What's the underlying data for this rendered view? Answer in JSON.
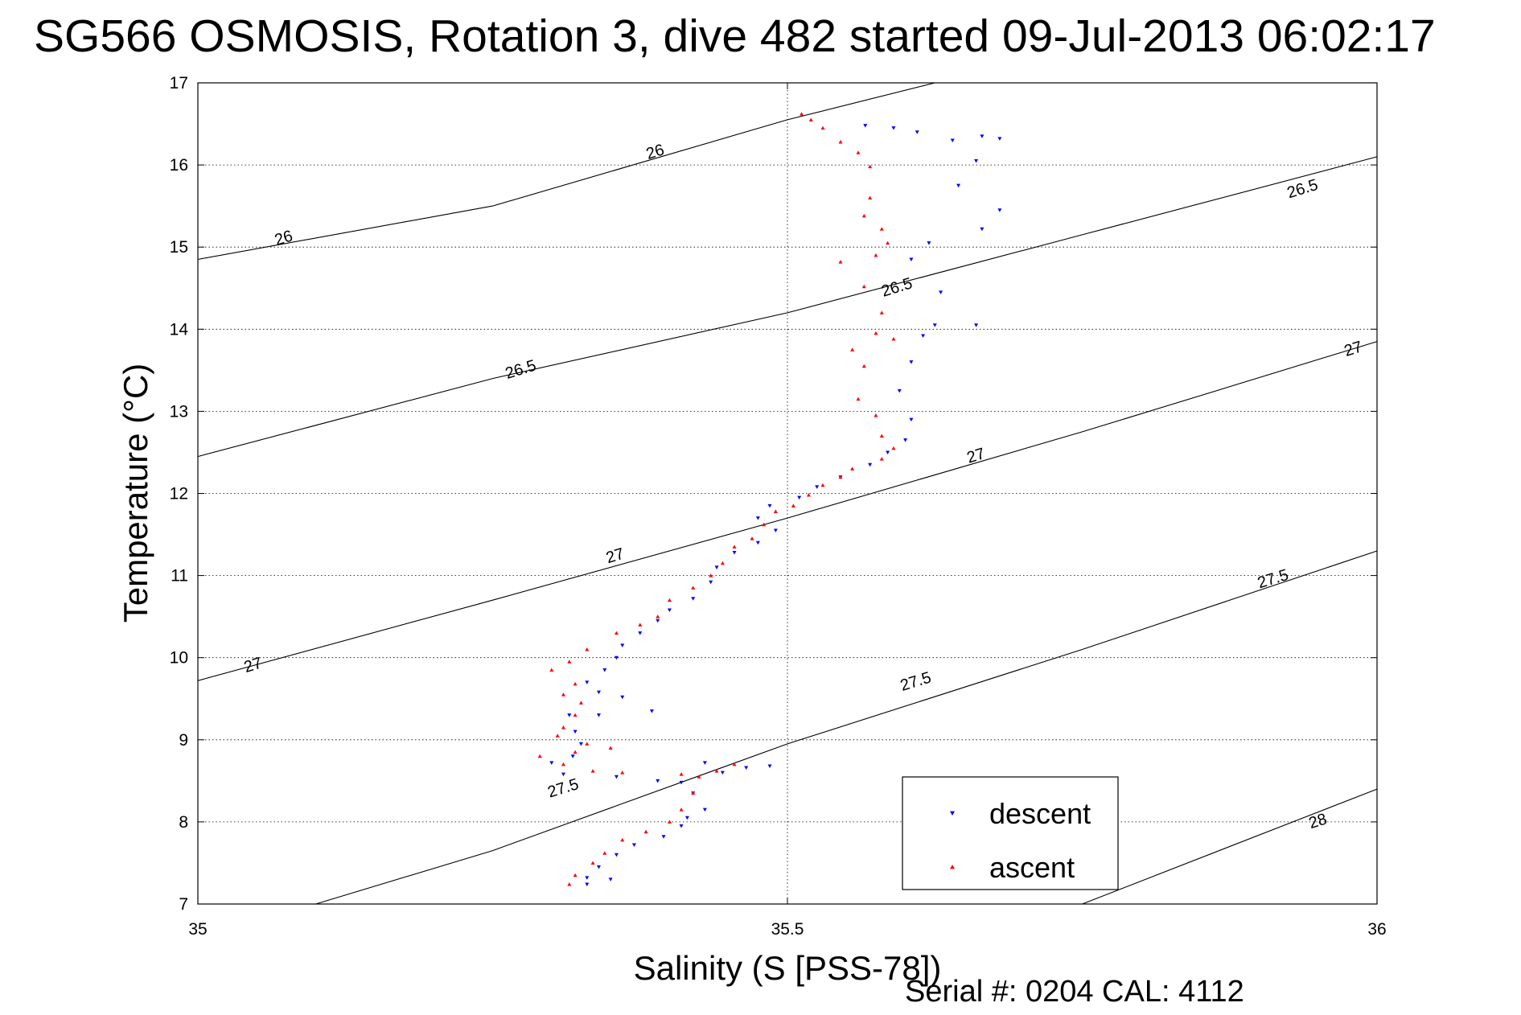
{
  "chart_data": {
    "type": "scatter",
    "title": "SG566 OSMOSIS, Rotation 3, dive 482 started 09-Jul-2013 06:02:17",
    "xlabel": "Salinity (S [PSS-78])",
    "ylabel": "Temperature (°C)",
    "xlim": [
      35,
      36
    ],
    "ylim": [
      7,
      17
    ],
    "x_ticks": [
      "35",
      "35.5",
      "36"
    ],
    "y_ticks": [
      "7",
      "8",
      "9",
      "10",
      "11",
      "12",
      "13",
      "14",
      "15",
      "16",
      "17"
    ],
    "grid": true,
    "legend_position": "bottom-right",
    "footer": "Serial #: 0204  CAL: 4112",
    "density_contours": [
      {
        "label": "26",
        "points": [
          [
            35.0,
            14.85
          ],
          [
            35.25,
            15.5
          ],
          [
            35.5,
            16.55
          ],
          [
            35.625,
            17.0
          ]
        ]
      },
      {
        "label": "26.5",
        "points": [
          [
            35.0,
            12.45
          ],
          [
            35.25,
            13.4
          ],
          [
            35.5,
            14.2
          ],
          [
            35.75,
            15.15
          ],
          [
            36.0,
            16.1
          ]
        ]
      },
      {
        "label": "27",
        "points": [
          [
            35.0,
            9.72
          ],
          [
            35.25,
            10.7
          ],
          [
            35.5,
            11.7
          ],
          [
            35.75,
            12.75
          ],
          [
            36.0,
            13.85
          ]
        ]
      },
      {
        "label": "27.5",
        "points": [
          [
            35.1,
            7.0
          ],
          [
            35.25,
            7.65
          ],
          [
            35.5,
            8.95
          ],
          [
            35.75,
            10.1
          ],
          [
            36.0,
            11.3
          ]
        ]
      },
      {
        "label": "28",
        "points": [
          [
            35.75,
            7.0
          ],
          [
            36.0,
            8.4
          ]
        ]
      }
    ],
    "contour_labels": [
      {
        "text": "26",
        "x": 35.388,
        "y": 16.15
      },
      {
        "text": "26",
        "x": 35.073,
        "y": 15.1
      },
      {
        "text": "26.5",
        "x": 35.937,
        "y": 15.7
      },
      {
        "text": "26.5",
        "x": 35.593,
        "y": 14.5
      },
      {
        "text": "26.5",
        "x": 35.274,
        "y": 13.5
      },
      {
        "text": "27",
        "x": 35.98,
        "y": 13.75
      },
      {
        "text": "27",
        "x": 35.66,
        "y": 12.45
      },
      {
        "text": "27",
        "x": 35.354,
        "y": 11.23
      },
      {
        "text": "27",
        "x": 35.047,
        "y": 9.9
      },
      {
        "text": "27.5",
        "x": 35.912,
        "y": 10.95
      },
      {
        "text": "27.5",
        "x": 35.609,
        "y": 9.7
      },
      {
        "text": "27.5",
        "x": 35.31,
        "y": 8.4
      },
      {
        "text": "28",
        "x": 35.95,
        "y": 8.0
      }
    ],
    "series": [
      {
        "name": "descent",
        "color": "#0000ff",
        "marker": "triangle-down",
        "points": [
          [
            35.566,
            16.48
          ],
          [
            35.59,
            16.45
          ],
          [
            35.61,
            16.4
          ],
          [
            35.64,
            16.3
          ],
          [
            35.665,
            16.35
          ],
          [
            35.68,
            16.32
          ],
          [
            35.66,
            16.05
          ],
          [
            35.645,
            15.75
          ],
          [
            35.68,
            15.45
          ],
          [
            35.665,
            15.22
          ],
          [
            35.62,
            15.05
          ],
          [
            35.605,
            14.85
          ],
          [
            35.63,
            14.45
          ],
          [
            35.625,
            14.05
          ],
          [
            35.66,
            14.05
          ],
          [
            35.615,
            13.92
          ],
          [
            35.605,
            13.6
          ],
          [
            35.595,
            13.25
          ],
          [
            35.605,
            12.9
          ],
          [
            35.6,
            12.65
          ],
          [
            35.585,
            12.5
          ],
          [
            35.57,
            12.35
          ],
          [
            35.545,
            12.2
          ],
          [
            35.525,
            12.08
          ],
          [
            35.51,
            11.95
          ],
          [
            35.485,
            11.85
          ],
          [
            35.475,
            11.7
          ],
          [
            35.49,
            11.55
          ],
          [
            35.475,
            11.4
          ],
          [
            35.455,
            11.28
          ],
          [
            35.44,
            11.1
          ],
          [
            35.435,
            10.92
          ],
          [
            35.42,
            10.72
          ],
          [
            35.4,
            10.58
          ],
          [
            35.39,
            10.45
          ],
          [
            35.375,
            10.3
          ],
          [
            35.36,
            10.15
          ],
          [
            35.355,
            10.0
          ],
          [
            35.345,
            9.85
          ],
          [
            35.33,
            9.7
          ],
          [
            35.34,
            9.58
          ],
          [
            35.36,
            9.52
          ],
          [
            35.385,
            9.35
          ],
          [
            35.34,
            9.3
          ],
          [
            35.315,
            9.3
          ],
          [
            35.32,
            9.1
          ],
          [
            35.325,
            8.95
          ],
          [
            35.318,
            8.8
          ],
          [
            35.3,
            8.72
          ],
          [
            35.31,
            8.58
          ],
          [
            35.355,
            8.55
          ],
          [
            35.39,
            8.5
          ],
          [
            35.41,
            8.48
          ],
          [
            35.445,
            8.6
          ],
          [
            35.465,
            8.66
          ],
          [
            35.485,
            8.68
          ],
          [
            35.43,
            8.72
          ],
          [
            35.42,
            8.35
          ],
          [
            35.43,
            8.15
          ],
          [
            35.415,
            8.05
          ],
          [
            35.41,
            7.95
          ],
          [
            35.395,
            7.82
          ],
          [
            35.37,
            7.72
          ],
          [
            35.355,
            7.6
          ],
          [
            35.34,
            7.45
          ],
          [
            35.33,
            7.32
          ],
          [
            35.35,
            7.3
          ],
          [
            35.33,
            7.24
          ]
        ]
      },
      {
        "name": "ascent",
        "color": "#ff0000",
        "marker": "triangle-up",
        "points": [
          [
            35.512,
            16.62
          ],
          [
            35.52,
            16.55
          ],
          [
            35.53,
            16.45
          ],
          [
            35.545,
            16.28
          ],
          [
            35.56,
            16.15
          ],
          [
            35.57,
            15.98
          ],
          [
            35.57,
            15.6
          ],
          [
            35.565,
            15.38
          ],
          [
            35.58,
            15.22
          ],
          [
            35.585,
            15.05
          ],
          [
            35.575,
            14.9
          ],
          [
            35.545,
            14.82
          ],
          [
            35.565,
            14.52
          ],
          [
            35.58,
            14.2
          ],
          [
            35.575,
            13.95
          ],
          [
            35.59,
            13.88
          ],
          [
            35.555,
            13.75
          ],
          [
            35.565,
            13.55
          ],
          [
            35.56,
            13.15
          ],
          [
            35.575,
            12.95
          ],
          [
            35.58,
            12.7
          ],
          [
            35.59,
            12.55
          ],
          [
            35.58,
            12.42
          ],
          [
            35.555,
            12.3
          ],
          [
            35.545,
            12.2
          ],
          [
            35.53,
            12.1
          ],
          [
            35.518,
            11.98
          ],
          [
            35.505,
            11.85
          ],
          [
            35.49,
            11.78
          ],
          [
            35.48,
            11.62
          ],
          [
            35.47,
            11.45
          ],
          [
            35.455,
            11.35
          ],
          [
            35.445,
            11.15
          ],
          [
            35.435,
            11.0
          ],
          [
            35.42,
            10.85
          ],
          [
            35.4,
            10.7
          ],
          [
            35.39,
            10.5
          ],
          [
            35.375,
            10.4
          ],
          [
            35.355,
            10.3
          ],
          [
            35.33,
            10.1
          ],
          [
            35.315,
            9.95
          ],
          [
            35.3,
            9.85
          ],
          [
            35.32,
            9.68
          ],
          [
            35.31,
            9.55
          ],
          [
            35.325,
            9.45
          ],
          [
            35.32,
            9.3
          ],
          [
            35.31,
            9.15
          ],
          [
            35.305,
            9.05
          ],
          [
            35.33,
            8.95
          ],
          [
            35.35,
            8.9
          ],
          [
            35.32,
            8.85
          ],
          [
            35.29,
            8.8
          ],
          [
            35.31,
            8.7
          ],
          [
            35.335,
            8.62
          ],
          [
            35.36,
            8.6
          ],
          [
            35.41,
            8.58
          ],
          [
            35.44,
            8.62
          ],
          [
            35.455,
            8.7
          ],
          [
            35.425,
            8.55
          ],
          [
            35.42,
            8.35
          ],
          [
            35.41,
            8.15
          ],
          [
            35.4,
            8.0
          ],
          [
            35.38,
            7.88
          ],
          [
            35.36,
            7.78
          ],
          [
            35.345,
            7.62
          ],
          [
            35.335,
            7.5
          ],
          [
            35.32,
            7.35
          ],
          [
            35.315,
            7.24
          ]
        ]
      }
    ]
  }
}
